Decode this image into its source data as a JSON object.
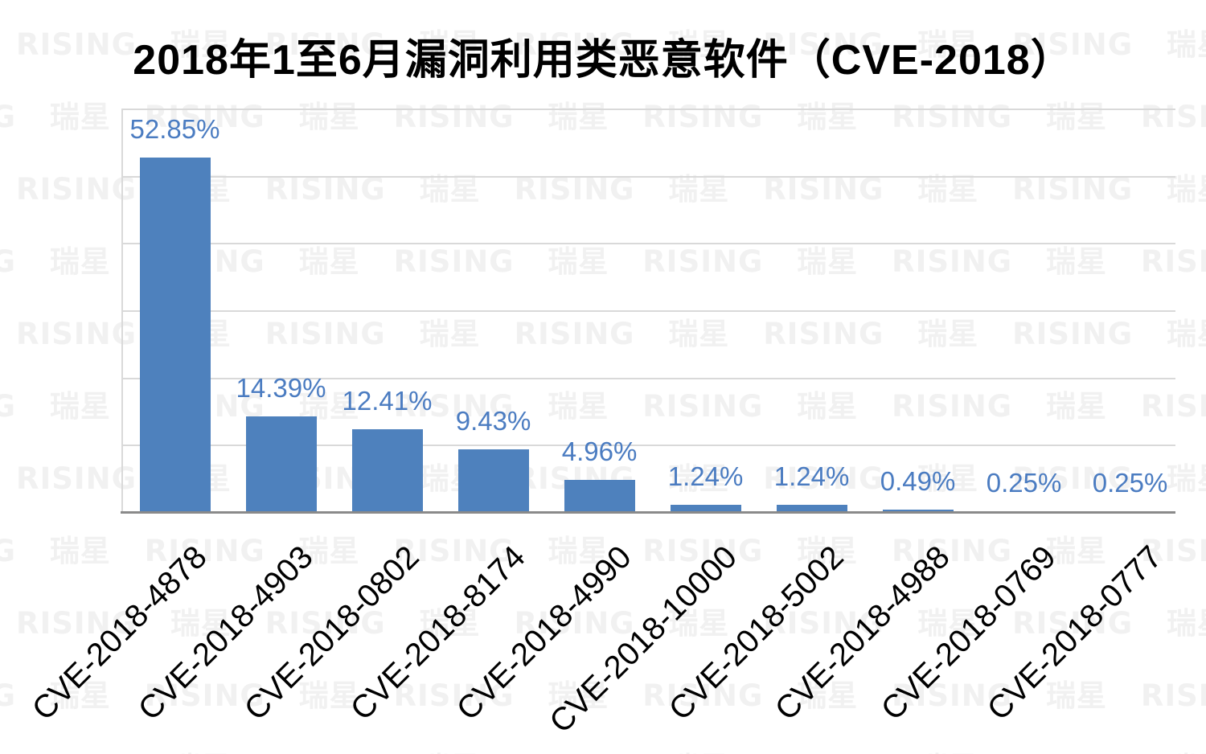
{
  "page": {
    "background": "#ffffff"
  },
  "title": {
    "text": "2018年1至6月漏洞利用类恶意软件（CVE-2018）",
    "color": "#000000"
  },
  "watermark": {
    "text": "RISING 瑞星",
    "color": "#f1f1f1"
  },
  "axes": {
    "gridline_color": "#d9d9d9",
    "y_axis_line_color": "#d9d9d9",
    "x_axis_line_color": "#8a8a8a"
  },
  "chart_data": {
    "type": "bar",
    "title": "2018年1至6月漏洞利用类恶意软件（CVE-2018）",
    "categories": [
      "CVE-2018-4878",
      "CVE-2018-4903",
      "CVE-2018-0802",
      "CVE-2018-8174",
      "CVE-2018-4990",
      "CVE-2018-10000",
      "CVE-2018-5002",
      "CVE-2018-4988",
      "CVE-2018-0769",
      "CVE-2018-0777"
    ],
    "values": [
      52.85,
      14.39,
      12.41,
      9.43,
      4.96,
      1.24,
      1.24,
      0.49,
      0.25,
      0.25
    ],
    "data_labels": [
      "52.85%",
      "14.39%",
      "12.41%",
      "9.43%",
      "4.96%",
      "1.24%",
      "1.24%",
      "0.49%",
      "0.25%",
      "0.25%"
    ],
    "unit": "%",
    "xlabel": "",
    "ylabel": "",
    "ylim": [
      0,
      60
    ],
    "gridline_interval": 10,
    "grid": true,
    "legend": false,
    "y_tick_labels_visible": false,
    "category_label_rotation_deg": -45,
    "bar_color": "#4e81bd",
    "data_label_color": "#4b7cc1",
    "category_label_color": "#000000"
  }
}
